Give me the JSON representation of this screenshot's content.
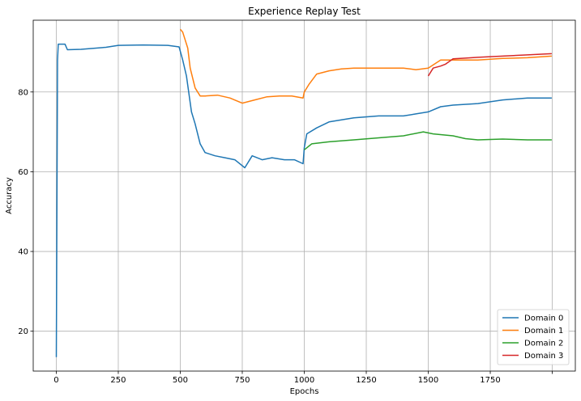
{
  "chart_data": {
    "type": "line",
    "title": "Experience Replay Test",
    "xlabel": "Epochs",
    "ylabel": "Accuracy",
    "xlim": [
      -93,
      2093
    ],
    "ylim": [
      10,
      98
    ],
    "xticks": [
      0,
      250,
      500,
      750,
      1000,
      1250,
      1500,
      1750,
      2000
    ],
    "xtick_labels": [
      "0",
      "250",
      "500",
      "750",
      "1000",
      "1250",
      "1500",
      "1750",
      ""
    ],
    "yticks": [
      20,
      40,
      60,
      80
    ],
    "ytick_labels": [
      "20",
      "40",
      "60",
      "80"
    ],
    "grid": true,
    "legend_position": "bottom-right",
    "series": [
      {
        "name": "Domain 0",
        "color": "#1f77b4",
        "points": [
          [
            0,
            13.5
          ],
          [
            5,
            88
          ],
          [
            8,
            92
          ],
          [
            35,
            92
          ],
          [
            45,
            90.6
          ],
          [
            100,
            90.7
          ],
          [
            200,
            91.2
          ],
          [
            250,
            91.7
          ],
          [
            350,
            91.8
          ],
          [
            450,
            91.7
          ],
          [
            495,
            91.3
          ],
          [
            510,
            88
          ],
          [
            525,
            84
          ],
          [
            545,
            75
          ],
          [
            560,
            72
          ],
          [
            580,
            67
          ],
          [
            600,
            64.8
          ],
          [
            640,
            64
          ],
          [
            680,
            63.5
          ],
          [
            720,
            63
          ],
          [
            760,
            61
          ],
          [
            790,
            64
          ],
          [
            830,
            63
          ],
          [
            870,
            63.5
          ],
          [
            920,
            63
          ],
          [
            960,
            63
          ],
          [
            995,
            62
          ],
          [
            1000,
            66
          ],
          [
            1010,
            69.5
          ],
          [
            1050,
            71
          ],
          [
            1100,
            72.5
          ],
          [
            1150,
            73
          ],
          [
            1200,
            73.5
          ],
          [
            1300,
            74
          ],
          [
            1400,
            74
          ],
          [
            1450,
            74.5
          ],
          [
            1500,
            75
          ],
          [
            1550,
            76.3
          ],
          [
            1600,
            76.7
          ],
          [
            1700,
            77.1
          ],
          [
            1800,
            78
          ],
          [
            1900,
            78.5
          ],
          [
            1998,
            78.5
          ]
        ]
      },
      {
        "name": "Domain 1",
        "color": "#ff7f0e",
        "points": [
          [
            500,
            95.7
          ],
          [
            510,
            95
          ],
          [
            530,
            91
          ],
          [
            540,
            86
          ],
          [
            560,
            81
          ],
          [
            580,
            79
          ],
          [
            600,
            79
          ],
          [
            650,
            79.2
          ],
          [
            700,
            78.5
          ],
          [
            750,
            77.2
          ],
          [
            800,
            78
          ],
          [
            850,
            78.8
          ],
          [
            900,
            79
          ],
          [
            950,
            79
          ],
          [
            995,
            78.5
          ],
          [
            1000,
            80
          ],
          [
            1020,
            82
          ],
          [
            1050,
            84.5
          ],
          [
            1100,
            85.3
          ],
          [
            1150,
            85.8
          ],
          [
            1200,
            86
          ],
          [
            1300,
            86
          ],
          [
            1400,
            86
          ],
          [
            1450,
            85.6
          ],
          [
            1500,
            86
          ],
          [
            1550,
            88
          ],
          [
            1600,
            88
          ],
          [
            1700,
            88
          ],
          [
            1800,
            88.4
          ],
          [
            1900,
            88.6
          ],
          [
            1998,
            89
          ]
        ]
      },
      {
        "name": "Domain 2",
        "color": "#2ca02c",
        "points": [
          [
            1000,
            65.5
          ],
          [
            1030,
            67
          ],
          [
            1100,
            67.5
          ],
          [
            1200,
            68
          ],
          [
            1300,
            68.5
          ],
          [
            1400,
            69
          ],
          [
            1480,
            70
          ],
          [
            1520,
            69.5
          ],
          [
            1600,
            69
          ],
          [
            1650,
            68.3
          ],
          [
            1700,
            68
          ],
          [
            1800,
            68.2
          ],
          [
            1900,
            68
          ],
          [
            1998,
            68
          ]
        ]
      },
      {
        "name": "Domain 3",
        "color": "#d62728",
        "points": [
          [
            1500,
            84
          ],
          [
            1520,
            86
          ],
          [
            1550,
            86.5
          ],
          [
            1570,
            87
          ],
          [
            1600,
            88.3
          ],
          [
            1650,
            88.5
          ],
          [
            1700,
            88.7
          ],
          [
            1800,
            89
          ],
          [
            1900,
            89.3
          ],
          [
            1998,
            89.6
          ]
        ]
      }
    ]
  }
}
